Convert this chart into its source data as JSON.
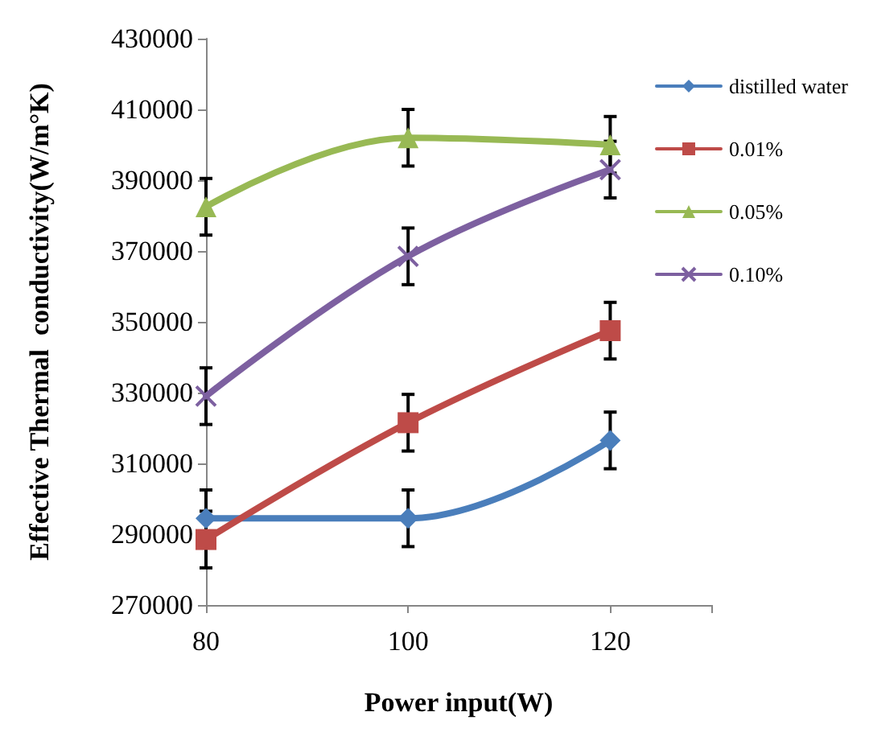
{
  "chart_data": {
    "type": "line",
    "xlabel": "Power input(W)",
    "ylabel": "Effective Thermal  conductivity(W/m°K)",
    "x": [
      80,
      100,
      120
    ],
    "xlim": [
      80,
      130
    ],
    "xticks": [
      80,
      100,
      120,
      {
        "value": 130,
        "label": null
      }
    ],
    "ylim": [
      270000,
      430000
    ],
    "yticks": [
      270000,
      290000,
      310000,
      330000,
      350000,
      370000,
      390000,
      410000,
      430000
    ],
    "grid": false,
    "legend": "top right",
    "series": [
      {
        "name": "distilled water",
        "color": "#4a7ebb",
        "marker": "diamond",
        "values": [
          294500,
          294500,
          316500
        ],
        "errors": [
          8000,
          8000,
          8000
        ]
      },
      {
        "name": "0.01%",
        "color": "#be4b48",
        "marker": "square",
        "values": [
          288500,
          321500,
          347500
        ],
        "errors": [
          8000,
          8000,
          8000
        ]
      },
      {
        "name": "0.05%",
        "color": "#98b954",
        "marker": "triangle",
        "values": [
          382500,
          402000,
          400000
        ],
        "errors": [
          8000,
          8000,
          8000
        ]
      },
      {
        "name": "0.10%",
        "color": "#7d60a0",
        "marker": "cross",
        "values": [
          329000,
          368500,
          393000
        ],
        "errors": [
          8000,
          8000,
          8000
        ]
      }
    ]
  }
}
